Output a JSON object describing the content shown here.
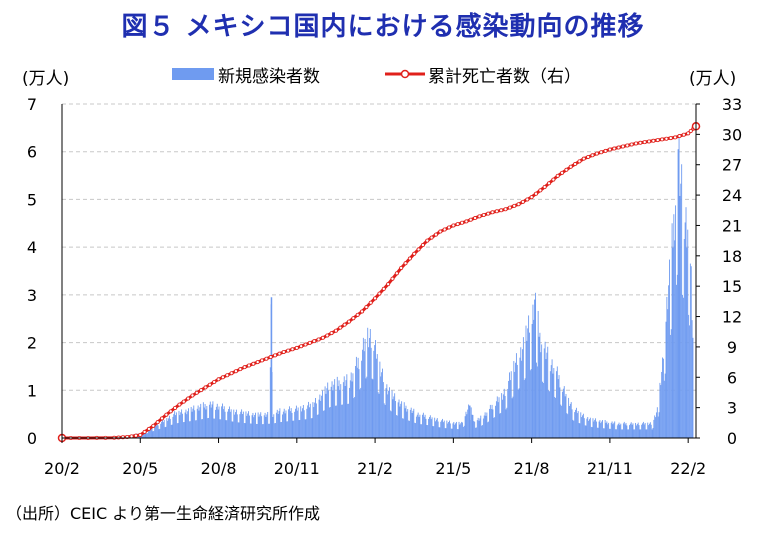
{
  "title": "図５ メキシコ国内における感染動向の推移",
  "source": "（出所）CEIC より第一生命経済研究所作成",
  "chart_data": {
    "type": "bar+line",
    "left_axis": {
      "unit_label": "(万人)",
      "ylim": [
        0,
        7
      ],
      "ticks": [
        "0",
        "1",
        "2",
        "3",
        "4",
        "5",
        "6",
        "7"
      ]
    },
    "right_axis": {
      "unit_label": "(万人)",
      "ylim": [
        0,
        33
      ],
      "ticks": [
        "0",
        "3",
        "6",
        "9",
        "12",
        "15",
        "18",
        "21",
        "24",
        "27",
        "30",
        "33"
      ]
    },
    "x_ticks": [
      "20/2",
      "20/5",
      "20/8",
      "20/11",
      "21/2",
      "21/5",
      "21/8",
      "21/11",
      "22/2"
    ],
    "x_range_months": [
      0,
      24.3
    ],
    "grid": "horizontal dashed",
    "legend_position": "top",
    "colors": {
      "bars": "#6f9bf0",
      "line": "#e0201b",
      "title": "#1f2fb0"
    },
    "series": [
      {
        "name": "新規感染者数",
        "axis": "left",
        "kind": "bar",
        "note": "daily new cases, 10k persons; x in months since 2020/2 (approx. read from chart)",
        "points": [
          [
            0,
            0
          ],
          [
            1,
            0
          ],
          [
            1.5,
            0.01
          ],
          [
            2,
            0.02
          ],
          [
            2.5,
            0.05
          ],
          [
            3,
            0.1
          ],
          [
            3.3,
            0.18
          ],
          [
            3.6,
            0.28
          ],
          [
            4,
            0.4
          ],
          [
            4.3,
            0.5
          ],
          [
            4.6,
            0.55
          ],
          [
            5,
            0.6
          ],
          [
            5.3,
            0.65
          ],
          [
            5.6,
            0.7
          ],
          [
            6,
            0.66
          ],
          [
            6.3,
            0.62
          ],
          [
            6.6,
            0.56
          ],
          [
            7,
            0.52
          ],
          [
            7.3,
            0.5
          ],
          [
            7.6,
            0.48
          ],
          [
            7.95,
            0.5
          ],
          [
            8.0,
            2.95
          ],
          [
            8.05,
            0.5
          ],
          [
            8.3,
            0.55
          ],
          [
            8.6,
            0.58
          ],
          [
            9,
            0.62
          ],
          [
            9.3,
            0.65
          ],
          [
            9.6,
            0.7
          ],
          [
            10,
            0.95
          ],
          [
            10.3,
            1.1
          ],
          [
            10.6,
            1.15
          ],
          [
            11,
            1.2
          ],
          [
            11.3,
            1.55
          ],
          [
            11.5,
            1.85
          ],
          [
            11.7,
            2.2
          ],
          [
            11.9,
            2.05
          ],
          [
            12.1,
            1.6
          ],
          [
            12.4,
            1.1
          ],
          [
            12.7,
            0.85
          ],
          [
            13,
            0.7
          ],
          [
            13.3,
            0.6
          ],
          [
            13.6,
            0.5
          ],
          [
            14,
            0.45
          ],
          [
            14.3,
            0.4
          ],
          [
            14.6,
            0.35
          ],
          [
            15,
            0.32
          ],
          [
            15.3,
            0.3
          ],
          [
            15.6,
            0.68
          ],
          [
            15.8,
            0.35
          ],
          [
            16,
            0.4
          ],
          [
            16.3,
            0.55
          ],
          [
            16.6,
            0.75
          ],
          [
            17,
            1.0
          ],
          [
            17.3,
            1.5
          ],
          [
            17.6,
            1.85
          ],
          [
            17.8,
            2.2
          ],
          [
            18,
            2.45
          ],
          [
            18.1,
            2.9
          ],
          [
            18.3,
            2.1
          ],
          [
            18.6,
            1.7
          ],
          [
            19,
            1.3
          ],
          [
            19.3,
            0.9
          ],
          [
            19.6,
            0.6
          ],
          [
            20,
            0.45
          ],
          [
            20.3,
            0.38
          ],
          [
            20.6,
            0.35
          ],
          [
            21,
            0.32
          ],
          [
            21.3,
            0.3
          ],
          [
            21.6,
            0.3
          ],
          [
            22,
            0.3
          ],
          [
            22.3,
            0.3
          ],
          [
            22.6,
            0.3
          ],
          [
            22.8,
            0.6
          ],
          [
            23,
            1.5
          ],
          [
            23.2,
            3.0
          ],
          [
            23.4,
            4.2
          ],
          [
            23.5,
            5.0
          ],
          [
            23.6,
            6.05
          ],
          [
            23.7,
            5.2
          ],
          [
            23.8,
            4.9
          ],
          [
            23.9,
            4.5
          ],
          [
            24,
            4.3
          ],
          [
            24.1,
            3.2
          ],
          [
            24.2,
            1.4
          ]
        ]
      },
      {
        "name": "累計死亡者数（右）",
        "axis": "right",
        "kind": "line",
        "note": "cumulative deaths, 10k persons; x in months since 2020/2 (approx. read from chart)",
        "points": [
          [
            0,
            0
          ],
          [
            1,
            0
          ],
          [
            2,
            0.02
          ],
          [
            2.5,
            0.1
          ],
          [
            3,
            0.3
          ],
          [
            3.5,
            1.2
          ],
          [
            4,
            2.3
          ],
          [
            4.5,
            3.3
          ],
          [
            5,
            4.2
          ],
          [
            5.5,
            5.0
          ],
          [
            6,
            5.8
          ],
          [
            6.5,
            6.4
          ],
          [
            7,
            7.0
          ],
          [
            7.5,
            7.5
          ],
          [
            8,
            8.0
          ],
          [
            8.5,
            8.5
          ],
          [
            9,
            8.9
          ],
          [
            9.5,
            9.4
          ],
          [
            10,
            9.9
          ],
          [
            10.5,
            10.6
          ],
          [
            11,
            11.5
          ],
          [
            11.5,
            12.5
          ],
          [
            12,
            13.8
          ],
          [
            12.5,
            15.2
          ],
          [
            13,
            16.8
          ],
          [
            13.5,
            18.2
          ],
          [
            14,
            19.5
          ],
          [
            14.5,
            20.4
          ],
          [
            15,
            21.0
          ],
          [
            15.5,
            21.4
          ],
          [
            16,
            21.9
          ],
          [
            16.5,
            22.3
          ],
          [
            17,
            22.6
          ],
          [
            17.5,
            23.1
          ],
          [
            18,
            23.8
          ],
          [
            18.5,
            24.8
          ],
          [
            19,
            25.9
          ],
          [
            19.5,
            26.8
          ],
          [
            20,
            27.6
          ],
          [
            20.5,
            28.1
          ],
          [
            21,
            28.5
          ],
          [
            21.5,
            28.8
          ],
          [
            22,
            29.1
          ],
          [
            22.5,
            29.3
          ],
          [
            23,
            29.5
          ],
          [
            23.5,
            29.7
          ],
          [
            24,
            30.1
          ],
          [
            24.3,
            30.8
          ]
        ]
      }
    ]
  }
}
